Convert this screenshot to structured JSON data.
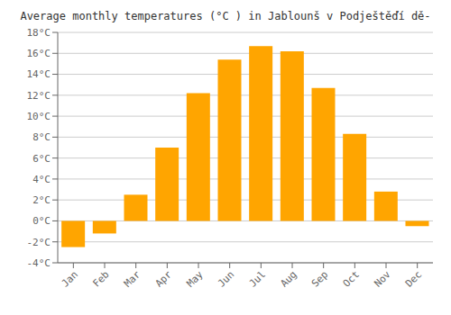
{
  "chart_data": {
    "type": "bar",
    "title": "Average monthly temperatures (°C ) in Jablounš v Podještěďí dě-",
    "categories": [
      "Jan",
      "Feb",
      "Mar",
      "Apr",
      "May",
      "Jun",
      "Jul",
      "Aug",
      "Sep",
      "Oct",
      "Nov",
      "Dec"
    ],
    "values": [
      -2.5,
      -1.2,
      2.5,
      7.0,
      12.2,
      15.4,
      16.7,
      16.2,
      12.7,
      8.3,
      2.8,
      -0.5
    ],
    "color": "#FFA500",
    "ylim": [
      -4,
      18
    ],
    "yticks": [
      {
        "value": -4,
        "label": "-4°C"
      },
      {
        "value": -2,
        "label": "-2°C"
      },
      {
        "value": 0,
        "label": "0°C"
      },
      {
        "value": 2,
        "label": "2°C"
      },
      {
        "value": 4,
        "label": "4°C"
      },
      {
        "value": 6,
        "label": "6°C"
      },
      {
        "value": 8,
        "label": "8°C"
      },
      {
        "value": 10,
        "label": "10°C"
      },
      {
        "value": 12,
        "label": "12°C"
      },
      {
        "value": 14,
        "label": "14°C"
      },
      {
        "value": 16,
        "label": "16°C"
      },
      {
        "value": 18,
        "label": "18°C"
      }
    ],
    "grid": true
  }
}
